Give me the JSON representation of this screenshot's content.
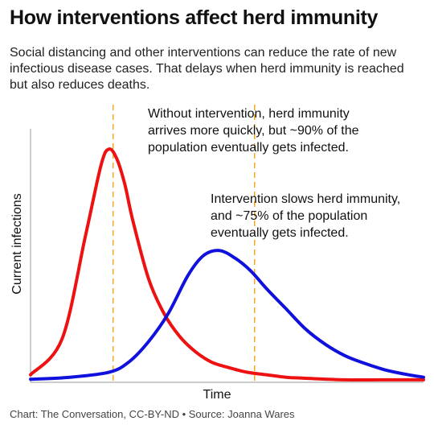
{
  "title": "How interventions affect herd immunity",
  "subtitle_lines": [
    "Social distancing and other interventions can reduce the rate of new",
    "infectious disease cases. That delays when herd immunity is reached",
    "but also reduces deaths."
  ],
  "footer": "Chart: The Conversation, CC-BY-ND • Source: Joanna Wares",
  "chart_data": {
    "type": "line",
    "xlabel": "Time",
    "ylabel": "Current infections",
    "xlim": [
      0,
      100
    ],
    "ylim": [
      0,
      100
    ],
    "grid": false,
    "series": [
      {
        "key": "no_intervention",
        "color": "#ee1111",
        "x": [
          0,
          8,
          14,
          18,
          20,
          22,
          24,
          26,
          30,
          34,
          38,
          42,
          46,
          50,
          55,
          60,
          65,
          70,
          80,
          90,
          100
        ],
        "y": [
          3,
          17,
          58,
          86,
          92,
          88,
          78,
          64,
          41,
          27,
          18,
          12,
          8,
          6,
          4,
          3,
          2,
          1.6,
          1,
          1,
          1
        ]
      },
      {
        "key": "intervention",
        "color": "#1111dd",
        "x": [
          0,
          10,
          20,
          25,
          30,
          35,
          40,
          44,
          48,
          52,
          56,
          60,
          65,
          70,
          75,
          80,
          85,
          90,
          95,
          100
        ],
        "y": [
          1.2,
          2,
          4,
          8,
          16,
          27,
          42,
          50,
          52,
          49,
          44,
          37,
          29,
          21,
          15,
          10.5,
          7.5,
          5,
          3.3,
          2
        ]
      }
    ],
    "vlines": [
      {
        "x": 21,
        "color": "#f5a623"
      },
      {
        "x": 57,
        "color": "#f5a623"
      }
    ],
    "annotations": [
      {
        "lines": [
          "Without intervention, herd immunity",
          "arrives more quickly, but ~90% of the",
          "population eventually gets infected."
        ]
      },
      {
        "lines": [
          "Intervention slows herd immunity,",
          "and ~75% of the population",
          "eventually gets infected."
        ]
      }
    ]
  }
}
